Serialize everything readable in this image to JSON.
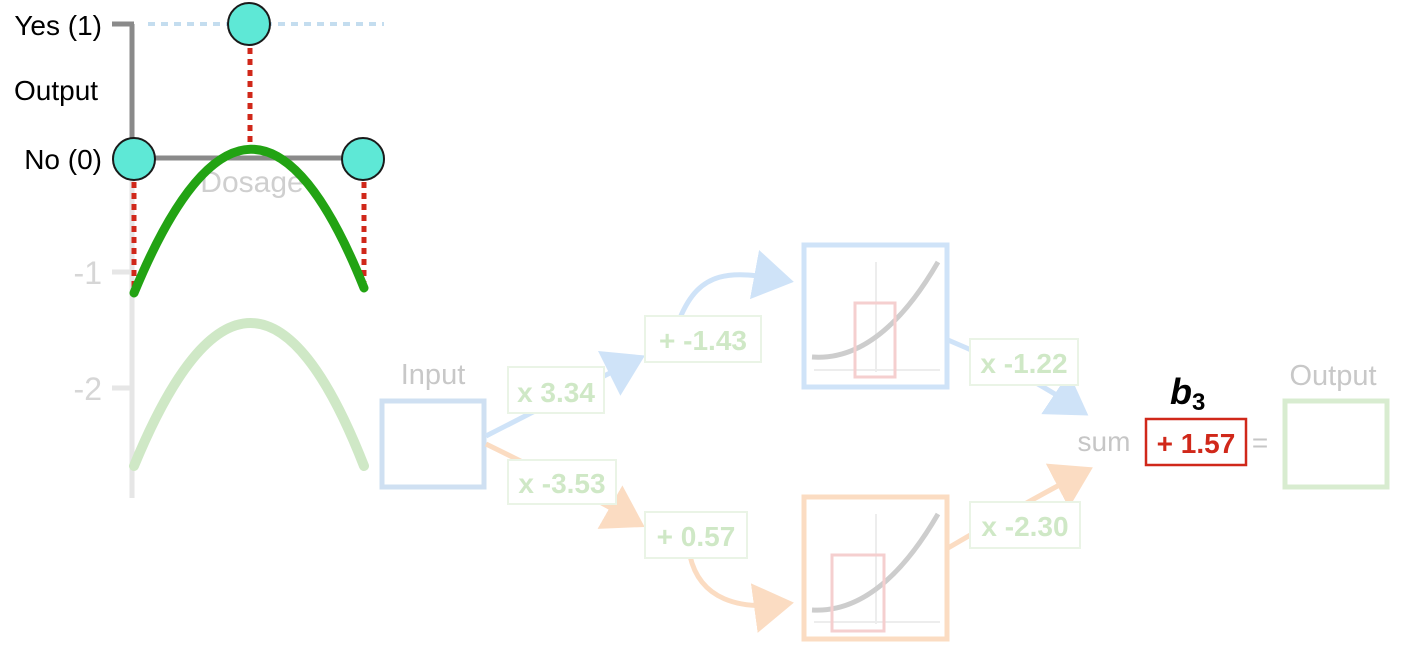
{
  "graph": {
    "y_labels": {
      "yes": "Yes (1)",
      "output": "Output",
      "no": "No (0)"
    },
    "x_label": "Dosage",
    "ticks": [
      "-1",
      "-2"
    ]
  },
  "network": {
    "input_label": "Input",
    "output_label": "Output",
    "weights": {
      "top_in": "x 3.34",
      "bottom_in": "x -3.53",
      "top_out": "x -1.22",
      "bottom_out": "x -2.30"
    },
    "biases": {
      "top": "+ -1.43",
      "bottom": "+ 0.57",
      "final": "+ 1.57"
    },
    "sum_label": "sum",
    "equals": "=",
    "b3_base": "b",
    "b3_sub": "3"
  },
  "colors": {
    "green": "#22a313",
    "green_faded": "#cfe8c6",
    "blue_faded": "#cfe3f8",
    "orange_faded": "#fbdcc2",
    "red": "#d0281a",
    "teal": "#5ee8d6",
    "gray": "#8a8a8a"
  }
}
